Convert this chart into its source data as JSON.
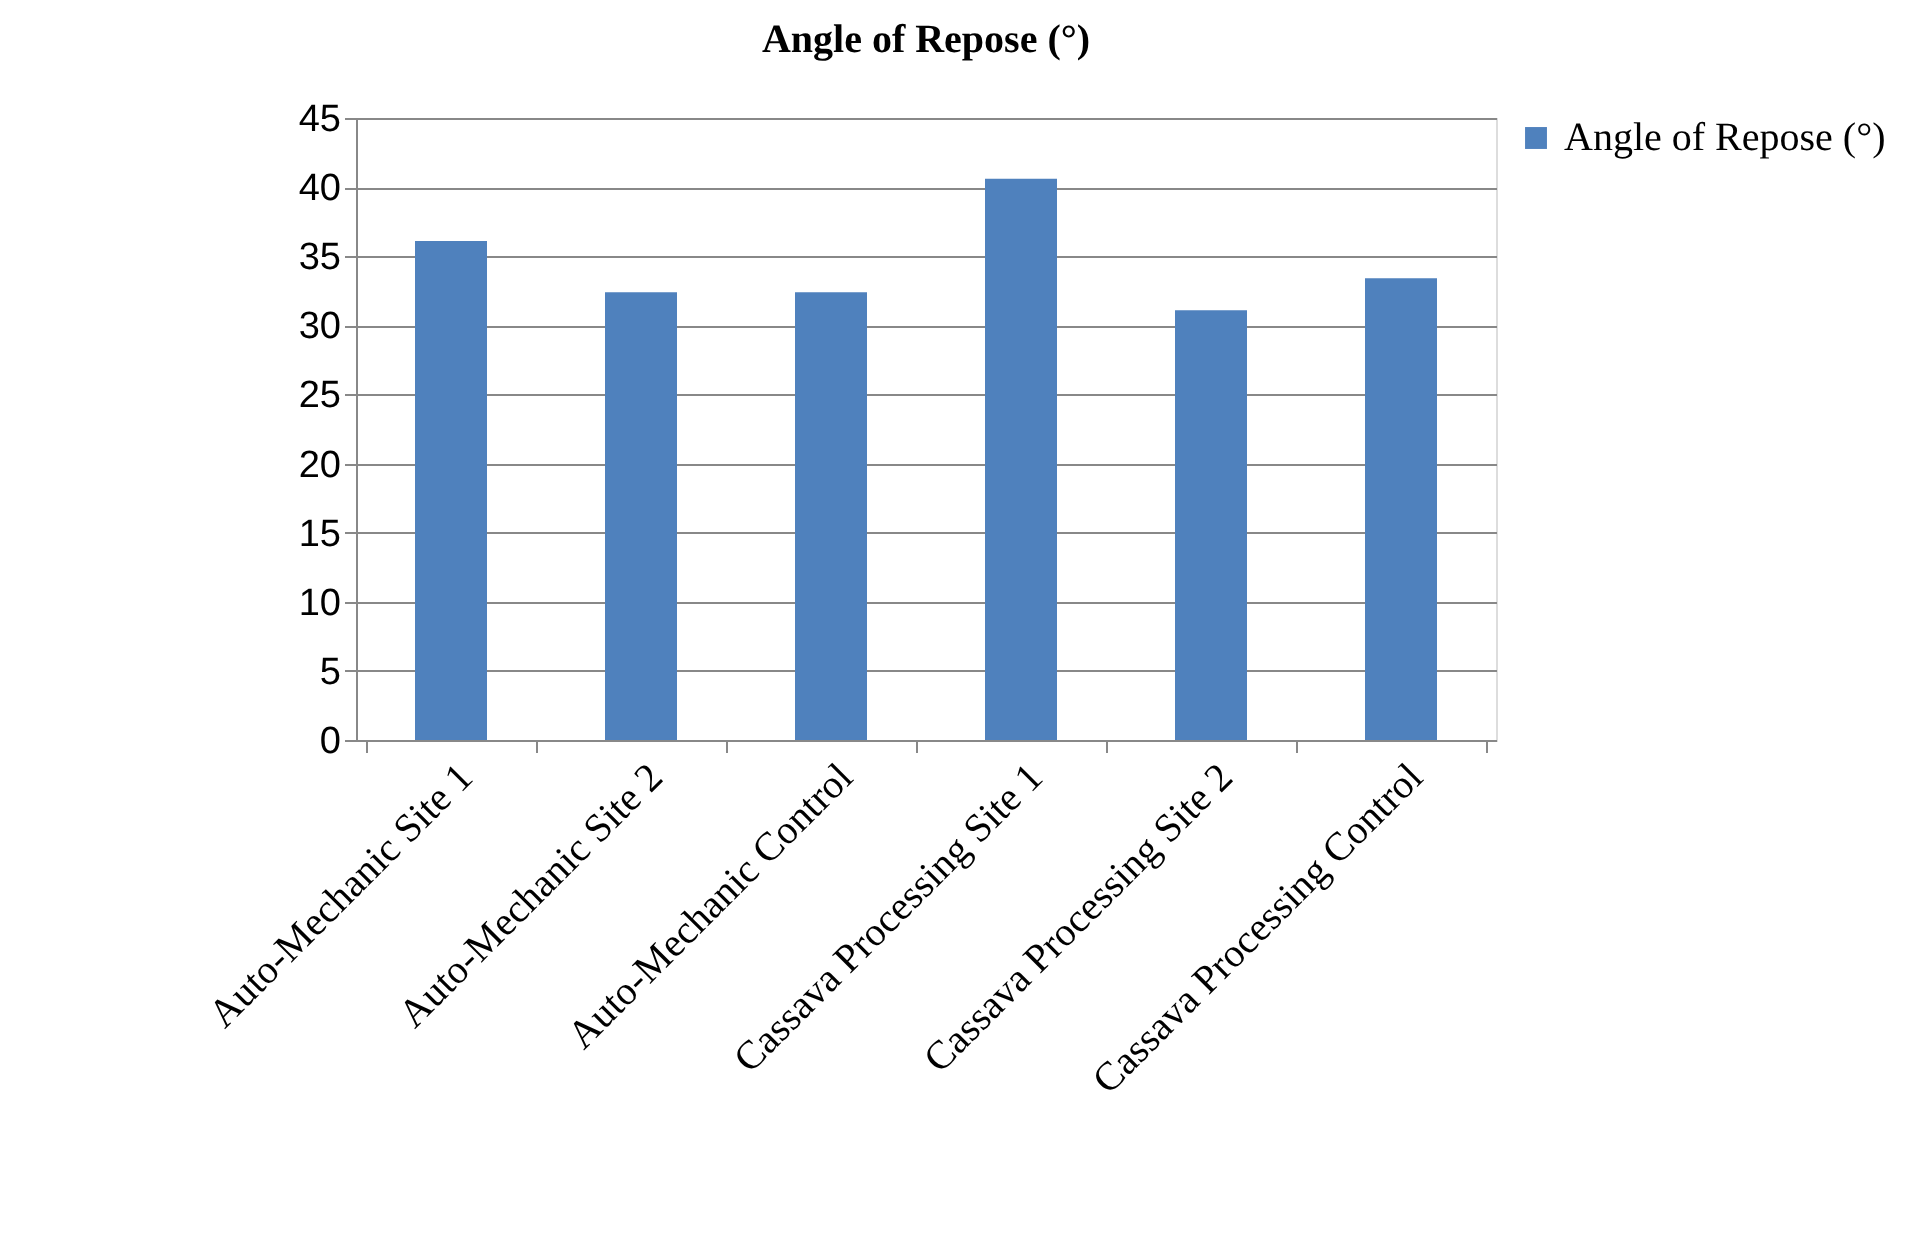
{
  "chart_data": {
    "type": "bar",
    "title": "Angle of Repose (°)",
    "categories": [
      "Auto-Mechanic Site 1",
      "Auto-Mechanic Site 2",
      "Auto-Mechanic Control",
      "Cassava Processing Site 1",
      "Cassava Processing Site 2",
      "Cassava Processing Control"
    ],
    "series": [
      {
        "name": "Angle of Repose (°)",
        "color": "#4f81bd",
        "values": [
          36.1,
          32.4,
          32.4,
          40.6,
          31.1,
          33.4
        ]
      }
    ],
    "ylim": [
      0,
      45
    ],
    "yticks": [
      0,
      5,
      10,
      15,
      20,
      25,
      30,
      35,
      40,
      45
    ],
    "grid": "y",
    "legend": "right"
  }
}
